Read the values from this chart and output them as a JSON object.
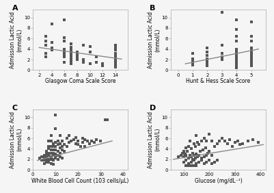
{
  "panel_A": {
    "label": "A",
    "xlabel": "Glasgow Coma Scale Score",
    "ylabel": "Admission Lactic Acid\n(mmol/L)",
    "xlim": [
      1,
      16
    ],
    "ylim": [
      0,
      11.5
    ],
    "xticks": [
      2,
      4,
      6,
      8,
      10,
      12,
      14
    ],
    "yticks": [
      0,
      2,
      4,
      6,
      8,
      10
    ],
    "trend_x": [
      2,
      15
    ],
    "trend_y": [
      4.3,
      2.1
    ],
    "scatter_x": [
      3,
      3,
      3,
      3,
      3,
      4,
      4,
      4,
      4,
      6,
      6,
      6,
      6,
      6,
      6,
      6,
      6,
      7,
      7,
      7,
      7,
      7,
      7,
      7,
      7,
      7,
      7,
      8,
      8,
      8,
      8,
      9,
      9,
      9,
      10,
      10,
      10,
      11,
      11,
      12,
      12,
      14,
      14,
      14,
      14,
      14,
      14,
      14,
      14,
      14,
      14,
      14,
      14,
      14,
      14,
      14
    ],
    "scatter_y": [
      6.5,
      5.5,
      4.8,
      3.2,
      2.5,
      8.8,
      5.2,
      4.2,
      3.8,
      9.5,
      6.2,
      5.5,
      4.0,
      3.5,
      3.0,
      2.5,
      1.5,
      5.0,
      4.3,
      4.0,
      3.5,
      3.0,
      2.5,
      2.0,
      1.8,
      1.5,
      1.2,
      3.5,
      3.0,
      2.5,
      2.0,
      4.8,
      2.0,
      1.5,
      4.5,
      3.5,
      1.2,
      2.5,
      1.5,
      1.2,
      0.8,
      4.8,
      4.2,
      3.8,
      3.2,
      2.8,
      2.5,
      2.2,
      1.8,
      1.5,
      1.2,
      1.0,
      0.8,
      0.6,
      4.2,
      1.5
    ]
  },
  "panel_B": {
    "label": "B",
    "xlabel": "Hunt & Hess Scale Score",
    "ylabel": "Admission Lactic Acid\n(mmol/L)",
    "xlim": [
      -0.5,
      6
    ],
    "ylim": [
      0,
      11.5
    ],
    "xticks": [
      0,
      1,
      2,
      3,
      4,
      5
    ],
    "yticks": [
      0,
      2,
      4,
      6,
      8,
      10
    ],
    "trend_x": [
      0.5,
      5.5
    ],
    "trend_y": [
      1.2,
      4.0
    ],
    "scatter_x": [
      1,
      1,
      1,
      1,
      1,
      2,
      2,
      2,
      2,
      2,
      2,
      2,
      2,
      3,
      3,
      3,
      3,
      3,
      4,
      4,
      4,
      4,
      4,
      4,
      4,
      4,
      4,
      4,
      4,
      4,
      4,
      4,
      5,
      5,
      5,
      5,
      5,
      5,
      5,
      5,
      5,
      5,
      5,
      5,
      5
    ],
    "scatter_y": [
      3.2,
      2.2,
      1.8,
      1.5,
      1.0,
      4.2,
      3.5,
      2.8,
      2.2,
      1.8,
      1.5,
      1.2,
      0.8,
      11.0,
      4.8,
      3.2,
      2.5,
      2.0,
      9.5,
      7.8,
      6.5,
      5.5,
      4.0,
      3.5,
      3.0,
      2.5,
      2.2,
      1.8,
      1.5,
      1.2,
      0.8,
      0.5,
      9.2,
      6.5,
      5.5,
      4.2,
      3.8,
      3.5,
      3.0,
      2.5,
      2.2,
      1.8,
      1.5,
      1.2,
      0.8
    ]
  },
  "panel_C": {
    "label": "C",
    "xlabel": "White Blood Cell Count (103 cells/µL)",
    "ylabel": "Admission Lactic Acid\n(mmol/L)",
    "xlim": [
      0,
      42
    ],
    "ylim": [
      0,
      11.5
    ],
    "xticks": [
      0,
      10,
      20,
      30,
      40
    ],
    "yticks": [
      0,
      2,
      4,
      6,
      8,
      10
    ],
    "trend_x": [
      2,
      35
    ],
    "trend_y": [
      1.8,
      5.5
    ],
    "scatter_x": [
      3,
      4,
      4,
      5,
      5,
      5,
      6,
      6,
      6,
      6,
      7,
      7,
      7,
      7,
      7,
      7,
      8,
      8,
      8,
      8,
      8,
      8,
      9,
      9,
      9,
      9,
      9,
      9,
      10,
      10,
      10,
      10,
      10,
      10,
      11,
      11,
      11,
      11,
      12,
      12,
      12,
      12,
      13,
      13,
      13,
      14,
      14,
      15,
      15,
      16,
      16,
      17,
      18,
      19,
      19,
      20,
      20,
      21,
      22,
      22,
      23,
      23,
      24,
      25,
      26,
      27,
      28,
      30,
      32,
      33,
      10,
      7,
      8,
      9,
      6,
      5,
      12,
      11,
      13,
      10,
      8,
      9
    ],
    "scatter_y": [
      2.2,
      2.5,
      1.8,
      2.8,
      2.2,
      1.8,
      3.5,
      3.0,
      2.5,
      2.0,
      5.5,
      4.5,
      4.0,
      3.2,
      2.8,
      2.0,
      6.5,
      5.5,
      4.5,
      3.8,
      3.2,
      2.5,
      5.0,
      4.5,
      3.8,
      3.2,
      2.8,
      2.0,
      10.5,
      5.2,
      4.5,
      3.8,
      3.0,
      2.2,
      5.5,
      4.8,
      3.5,
      2.8,
      6.5,
      5.0,
      4.2,
      3.2,
      5.5,
      4.5,
      3.8,
      4.8,
      3.5,
      6.0,
      4.5,
      6.5,
      5.2,
      5.5,
      5.8,
      6.2,
      5.0,
      5.5,
      4.8,
      4.5,
      6.0,
      5.2,
      5.8,
      4.5,
      5.5,
      5.0,
      5.5,
      5.2,
      5.8,
      5.5,
      9.5,
      9.5,
      7.8,
      1.5,
      1.2,
      1.0,
      1.5,
      1.2,
      2.5,
      2.0,
      2.2,
      2.8,
      2.0,
      1.8
    ]
  },
  "panel_D": {
    "label": "D",
    "xlabel": "Glucose (mg/dL⁻¹)",
    "ylabel": "Admission Lactic Acid\n(mmol/L)",
    "xlim": [
      50,
      420
    ],
    "ylim": [
      0,
      11.5
    ],
    "xticks": [
      100,
      200,
      300,
      400
    ],
    "yticks": [
      0,
      2,
      4,
      6,
      8,
      10
    ],
    "trend_x": [
      60,
      410
    ],
    "trend_y": [
      2.0,
      4.8
    ],
    "scatter_x": [
      80,
      90,
      95,
      100,
      100,
      105,
      110,
      110,
      115,
      120,
      120,
      125,
      125,
      130,
      130,
      135,
      135,
      140,
      140,
      145,
      145,
      150,
      150,
      155,
      155,
      160,
      160,
      165,
      170,
      170,
      175,
      180,
      180,
      185,
      190,
      190,
      195,
      200,
      200,
      210,
      210,
      220,
      230,
      240,
      250,
      260,
      270,
      280,
      290,
      300,
      310,
      320,
      330,
      350,
      370,
      390,
      100,
      110,
      120,
      130,
      140,
      150,
      160,
      170,
      180,
      190,
      200,
      210,
      220,
      230,
      110,
      120,
      130,
      140,
      150
    ],
    "scatter_y": [
      2.5,
      2.8,
      3.2,
      3.5,
      2.5,
      3.0,
      4.2,
      2.8,
      3.5,
      4.5,
      2.2,
      5.5,
      2.8,
      4.0,
      2.5,
      3.2,
      2.0,
      5.0,
      2.8,
      4.5,
      2.2,
      6.5,
      3.0,
      5.2,
      2.5,
      4.8,
      2.8,
      3.5,
      5.5,
      2.2,
      3.8,
      6.0,
      2.5,
      4.2,
      5.5,
      2.8,
      3.2,
      6.8,
      3.5,
      5.5,
      2.8,
      4.5,
      5.0,
      5.5,
      6.0,
      5.5,
      5.0,
      5.8,
      4.5,
      5.2,
      5.5,
      4.8,
      5.0,
      5.5,
      5.8,
      5.2,
      1.5,
      1.8,
      1.2,
      1.5,
      1.8,
      1.2,
      1.5,
      1.8,
      1.2,
      1.5,
      1.8,
      1.2,
      1.5,
      1.8,
      0.8,
      0.8,
      0.8,
      0.8,
      0.8
    ]
  },
  "marker": "s",
  "marker_size": 2.5,
  "marker_color": "#555555",
  "line_color": "#888888",
  "line_width": 1.0,
  "bg_color": "#f5f5f5",
  "tick_fontsize": 5,
  "label_fontsize": 5.5,
  "panel_label_fontsize": 8
}
